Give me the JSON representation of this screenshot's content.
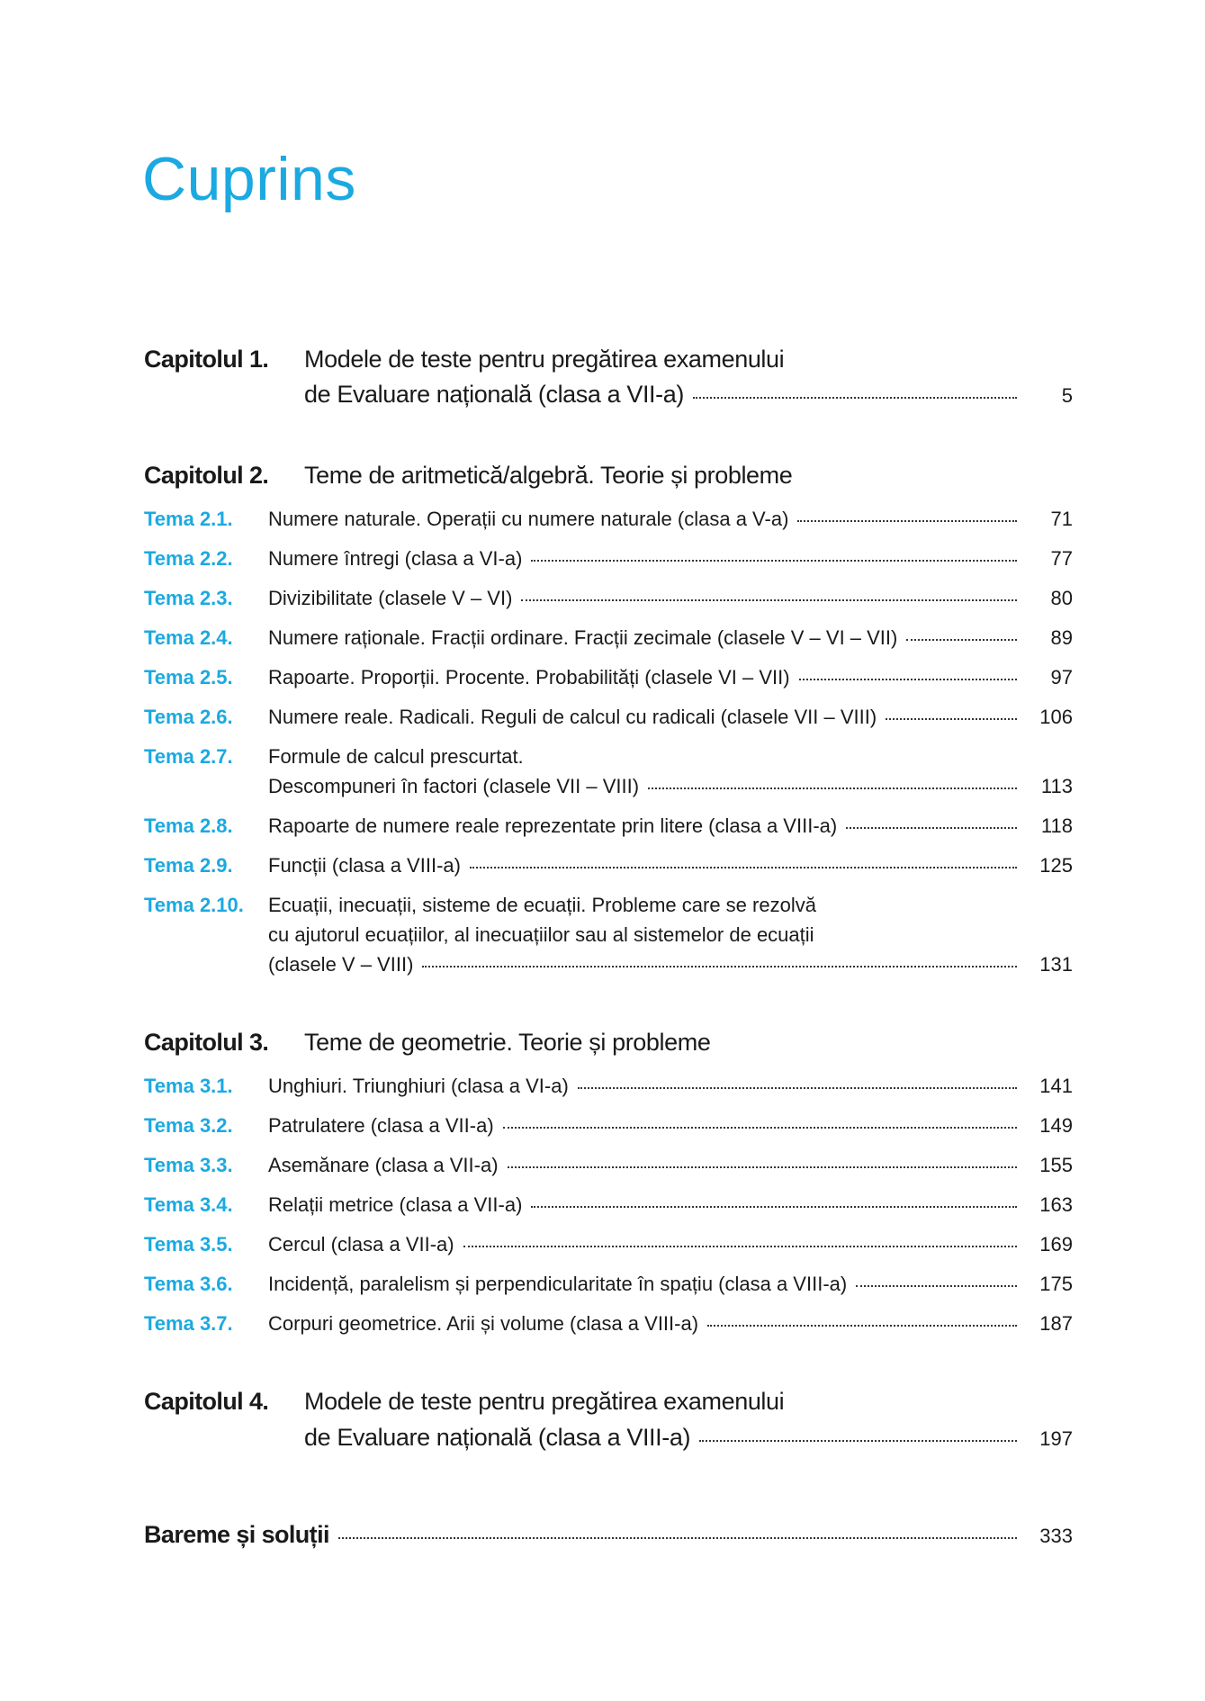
{
  "title": "Cuprins",
  "colors": {
    "accent": "#1ba9e1",
    "text": "#1a1a1a"
  },
  "chapters": [
    {
      "label": "Capitolul 1.",
      "line1": "Modele de teste pentru pregătirea examenului",
      "line2": "de Evaluare națională (clasa a VII-a)",
      "page": "5"
    },
    {
      "label": "Capitolul 2.",
      "line1": "Teme de aritmetică/algebră. Teorie și probleme"
    },
    {
      "label": "Capitolul 3.",
      "line1": "Teme de geometrie. Teorie și probleme"
    },
    {
      "label": "Capitolul 4.",
      "line1": "Modele de teste pentru pregătirea examenului",
      "line2": "de Evaluare națională (clasa a VIII-a)",
      "page": "197"
    }
  ],
  "topics": [
    {
      "label": "Tema 2.1.",
      "text": "Numere naturale. Operații cu numere naturale (clasa a V-a)",
      "page": "71"
    },
    {
      "label": "Tema 2.2.",
      "text": "Numere întregi (clasa a VI-a)",
      "page": "77"
    },
    {
      "label": "Tema 2.3.",
      "text": "Divizibilitate (clasele V – VI)",
      "page": "80"
    },
    {
      "label": "Tema 2.4.",
      "text": "Numere raționale. Fracții ordinare. Fracții zecimale (clasele V – VI – VII)",
      "page": "89"
    },
    {
      "label": "Tema 2.5.",
      "text": "Rapoarte. Proporții. Procente. Probabilități (clasele VI – VII)",
      "page": "97"
    },
    {
      "label": "Tema 2.6.",
      "text": "Numere reale. Radicali. Reguli de calcul cu radicali (clasele VII – VIII)",
      "page": "106"
    },
    {
      "label": "Tema 2.7.",
      "text": "Formule de calcul prescurtat.",
      "text2": "Descompuneri în factori (clasele VII – VIII)",
      "page": "113"
    },
    {
      "label": "Tema 2.8.",
      "text": "Rapoarte de numere reale reprezentate prin litere (clasa a VIII-a)",
      "page": "118"
    },
    {
      "label": "Tema 2.9.",
      "text": "Funcții (clasa a VIII-a)",
      "page": "125"
    },
    {
      "label": "Tema 2.10.",
      "text": "Ecuații, inecuații, sisteme de ecuații. Probleme care se rezolvă",
      "text2": "cu ajutorul ecuațiilor, al inecuațiilor sau al sistemelor de ecuații",
      "text3": "(clasele V – VIII)",
      "page": "131"
    },
    {
      "label": "Tema 3.1.",
      "text": "Unghiuri. Triunghiuri (clasa a VI-a)",
      "page": "141"
    },
    {
      "label": "Tema 3.2.",
      "text": "Patrulatere (clasa a VII-a)",
      "page": "149"
    },
    {
      "label": "Tema 3.3.",
      "text": "Asemănare (clasa a VII-a)",
      "page": "155"
    },
    {
      "label": "Tema 3.4.",
      "text": "Relații metrice (clasa a VII-a)",
      "page": "163"
    },
    {
      "label": "Tema 3.5.",
      "text": "Cercul (clasa a VII-a)",
      "page": "169"
    },
    {
      "label": "Tema 3.6.",
      "text": "Incidență, paralelism și perpendicularitate în spațiu (clasa a VIII-a)",
      "page": "175"
    },
    {
      "label": "Tema 3.7.",
      "text": "Corpuri geometrice. Arii și volume (clasa a VIII-a)",
      "page": "187"
    }
  ],
  "final": {
    "label": "Bareme și soluții",
    "page": "333"
  }
}
